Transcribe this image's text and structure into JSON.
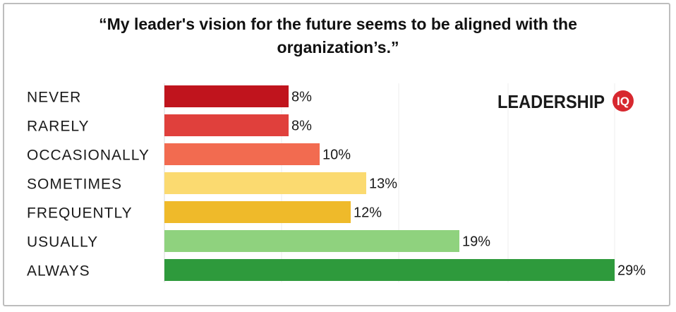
{
  "title_lines": [
    "“My leader's vision for the future seems to be aligned with the",
    "organization’s.”"
  ],
  "logo": {
    "text": "LEADERSHIP",
    "badge": "IQ",
    "badge_color": "#d7282f"
  },
  "chart_data": {
    "type": "bar",
    "orientation": "horizontal",
    "title": "“My leader's vision for the future seems to be aligned with the organization’s.”",
    "categories": [
      "NEVER",
      "RARELY",
      "OCCASIONALLY",
      "SOMETIMES",
      "FREQUENTLY",
      "USUALLY",
      "ALWAYS"
    ],
    "values": [
      8,
      8,
      10,
      13,
      12,
      19,
      29
    ],
    "value_labels": [
      "8%",
      "8%",
      "10%",
      "13%",
      "12%",
      "19%",
      "29%"
    ],
    "colors": [
      "#c0141d",
      "#e0403c",
      "#f26b50",
      "#fbda70",
      "#efba2a",
      "#8fd27e",
      "#2e9a3c"
    ],
    "xlim": [
      0,
      29
    ],
    "grid": true,
    "legend": "none"
  }
}
